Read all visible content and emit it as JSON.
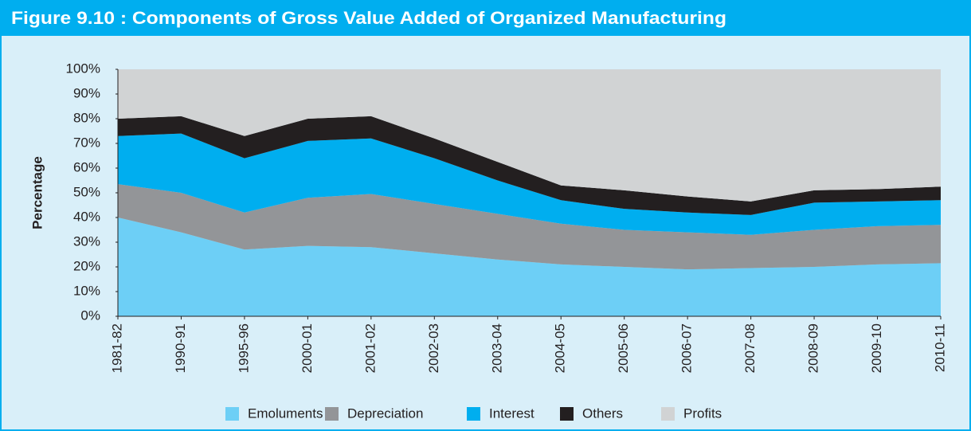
{
  "chart_data": {
    "type": "stacked_area",
    "title": "Figure 9.10 :  Components of Gross Value Added of Organized Manufacturing",
    "y_label": "Percentage",
    "categories": [
      "1981-82",
      "1990-91",
      "1995-96",
      "2000-01",
      "2001-02",
      "2002-03",
      "2003-04",
      "2004-05",
      "2005-06",
      "2006-07",
      "2007-08",
      "2008-09",
      "2009-10",
      "2010-11"
    ],
    "series": [
      {
        "name": "Emoluments",
        "color": "#6dcff6",
        "values": [
          40,
          34,
          27,
          28.5,
          28,
          25.5,
          23,
          21,
          20,
          19,
          19.5,
          20,
          21,
          21.5
        ]
      },
      {
        "name": "Depreciation",
        "color": "#939598",
        "values": [
          13.5,
          16,
          15,
          19.5,
          21.5,
          20,
          18.5,
          16.5,
          15,
          15,
          13.5,
          15,
          15.5,
          15.5
        ]
      },
      {
        "name": "Interest",
        "color": "#00aeef",
        "values": [
          19.5,
          24,
          22,
          23,
          22.5,
          18.5,
          13.5,
          9.5,
          8.5,
          8,
          8,
          11,
          10,
          10
        ]
      },
      {
        "name": "Others",
        "color": "#231f20",
        "values": [
          7,
          7,
          9,
          9,
          9,
          8,
          7.5,
          6,
          7.5,
          6.5,
          5.5,
          5,
          5,
          5.5
        ]
      },
      {
        "name": "Profits",
        "color": "#d1d3d4",
        "values": [
          20,
          19,
          27,
          20,
          19,
          28,
          37.5,
          47,
          49,
          51.5,
          53.5,
          49,
          48.5,
          47.5
        ]
      }
    ],
    "ylim": [
      0,
      100
    ],
    "yticks": [
      {
        "value": 0,
        "label": "0%"
      },
      {
        "value": 10,
        "label": "10%"
      },
      {
        "value": 20,
        "label": "20%"
      },
      {
        "value": 30,
        "label": "30%"
      },
      {
        "value": 40,
        "label": "40%"
      },
      {
        "value": 50,
        "label": "50%"
      },
      {
        "value": 60,
        "label": "60%"
      },
      {
        "value": 70,
        "label": "70%"
      },
      {
        "value": 80,
        "label": "80%"
      },
      {
        "value": 90,
        "label": "90%"
      },
      {
        "value": 100,
        "label": "100%"
      }
    ]
  }
}
